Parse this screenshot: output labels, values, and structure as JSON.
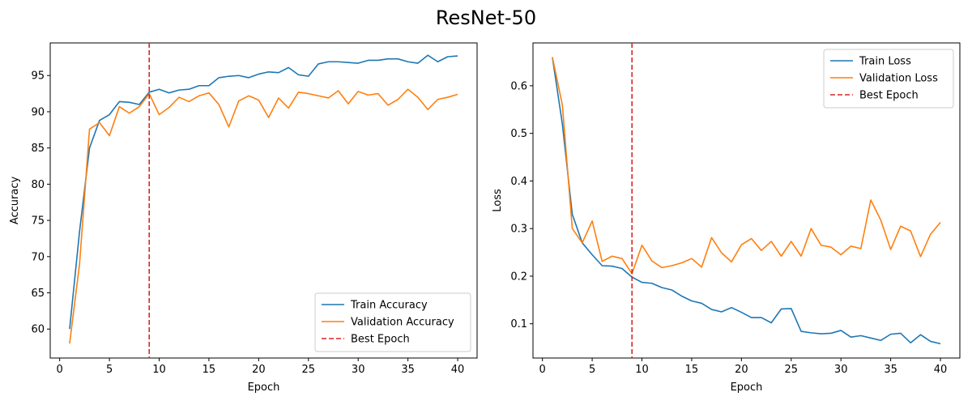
{
  "figure_title": "ResNet-50",
  "colors": {
    "train": "#1f77b4",
    "validation": "#ff7f0e",
    "best": "#d62728"
  },
  "chart_data": [
    {
      "type": "line",
      "xlabel": "Epoch",
      "ylabel": "Accuracy",
      "xlim": [
        -0.95,
        41.95
      ],
      "ylim": [
        56.0,
        99.5
      ],
      "xticks": [
        0,
        5,
        10,
        15,
        20,
        25,
        30,
        35,
        40
      ],
      "yticks": [
        60,
        65,
        70,
        75,
        80,
        85,
        90,
        95
      ],
      "grid": false,
      "legend_position": "lower-right",
      "best_epoch": 9,
      "x": [
        1,
        2,
        3,
        4,
        5,
        6,
        7,
        8,
        9,
        10,
        11,
        12,
        13,
        14,
        15,
        16,
        17,
        18,
        19,
        20,
        21,
        22,
        23,
        24,
        25,
        26,
        27,
        28,
        29,
        30,
        31,
        32,
        33,
        34,
        35,
        36,
        37,
        38,
        39,
        40
      ],
      "series": [
        {
          "name": "Train Accuracy",
          "color_key": "train",
          "style": "solid",
          "values": [
            60.0,
            73.5,
            85.0,
            88.8,
            89.6,
            91.4,
            91.3,
            91.0,
            92.7,
            93.1,
            92.6,
            93.0,
            93.1,
            93.6,
            93.6,
            94.7,
            94.9,
            95.0,
            94.7,
            95.2,
            95.5,
            95.4,
            96.1,
            95.1,
            94.9,
            96.6,
            96.9,
            96.9,
            96.8,
            96.7,
            97.1,
            97.1,
            97.3,
            97.3,
            96.9,
            96.7,
            97.8,
            96.9,
            97.6,
            97.7
          ]
        },
        {
          "name": "Validation Accuracy",
          "color_key": "validation",
          "style": "solid",
          "values": [
            58.0,
            69.0,
            87.6,
            88.5,
            86.7,
            90.7,
            89.8,
            90.7,
            92.5,
            89.6,
            90.6,
            92.0,
            91.4,
            92.2,
            92.6,
            91.0,
            87.9,
            91.5,
            92.2,
            91.6,
            89.2,
            91.9,
            90.5,
            92.7,
            92.5,
            92.2,
            91.9,
            92.9,
            91.1,
            92.8,
            92.3,
            92.5,
            90.9,
            91.7,
            93.1,
            92.0,
            90.3,
            91.7,
            92.0,
            92.4
          ]
        }
      ],
      "legend": [
        {
          "label": "Train Accuracy",
          "color_key": "train",
          "style": "solid"
        },
        {
          "label": "Validation Accuracy",
          "color_key": "validation",
          "style": "solid"
        },
        {
          "label": "Best Epoch",
          "color_key": "best",
          "style": "dashed"
        }
      ]
    },
    {
      "type": "line",
      "xlabel": "Epoch",
      "ylabel": "Loss",
      "xlim": [
        -0.95,
        41.95
      ],
      "ylim": [
        0.028,
        0.69
      ],
      "xticks": [
        0,
        5,
        10,
        15,
        20,
        25,
        30,
        35,
        40
      ],
      "yticks": [
        0.1,
        0.2,
        0.3,
        0.4,
        0.5,
        0.6
      ],
      "ytick_labels": [
        "0.1",
        "0.2",
        "0.3",
        "0.4",
        "0.5",
        "0.6"
      ],
      "grid": false,
      "legend_position": "upper-right",
      "best_epoch": 9,
      "x": [
        1,
        2,
        3,
        4,
        5,
        6,
        7,
        8,
        9,
        10,
        11,
        12,
        13,
        14,
        15,
        16,
        17,
        18,
        19,
        20,
        21,
        22,
        23,
        24,
        25,
        26,
        27,
        28,
        29,
        30,
        31,
        32,
        33,
        34,
        35,
        36,
        37,
        38,
        39,
        40
      ],
      "series": [
        {
          "name": "Train Loss",
          "color_key": "train",
          "style": "solid",
          "values": [
            0.66,
            0.52,
            0.33,
            0.27,
            0.245,
            0.222,
            0.221,
            0.216,
            0.198,
            0.187,
            0.185,
            0.176,
            0.171,
            0.158,
            0.148,
            0.143,
            0.13,
            0.125,
            0.134,
            0.124,
            0.113,
            0.113,
            0.102,
            0.131,
            0.132,
            0.084,
            0.081,
            0.079,
            0.08,
            0.086,
            0.072,
            0.075,
            0.07,
            0.065,
            0.078,
            0.08,
            0.06,
            0.077,
            0.063,
            0.058
          ]
        },
        {
          "name": "Validation Loss",
          "color_key": "validation",
          "style": "solid",
          "values": [
            0.66,
            0.56,
            0.3,
            0.27,
            0.316,
            0.231,
            0.242,
            0.237,
            0.205,
            0.265,
            0.232,
            0.218,
            0.222,
            0.228,
            0.237,
            0.219,
            0.281,
            0.249,
            0.23,
            0.266,
            0.279,
            0.254,
            0.273,
            0.242,
            0.273,
            0.242,
            0.3,
            0.265,
            0.261,
            0.245,
            0.263,
            0.258,
            0.36,
            0.318,
            0.256,
            0.305,
            0.295,
            0.241,
            0.288,
            0.313
          ]
        }
      ],
      "legend": [
        {
          "label": "Train Loss",
          "color_key": "train",
          "style": "solid"
        },
        {
          "label": "Validation Loss",
          "color_key": "validation",
          "style": "solid"
        },
        {
          "label": "Best Epoch",
          "color_key": "best",
          "style": "dashed"
        }
      ]
    }
  ]
}
